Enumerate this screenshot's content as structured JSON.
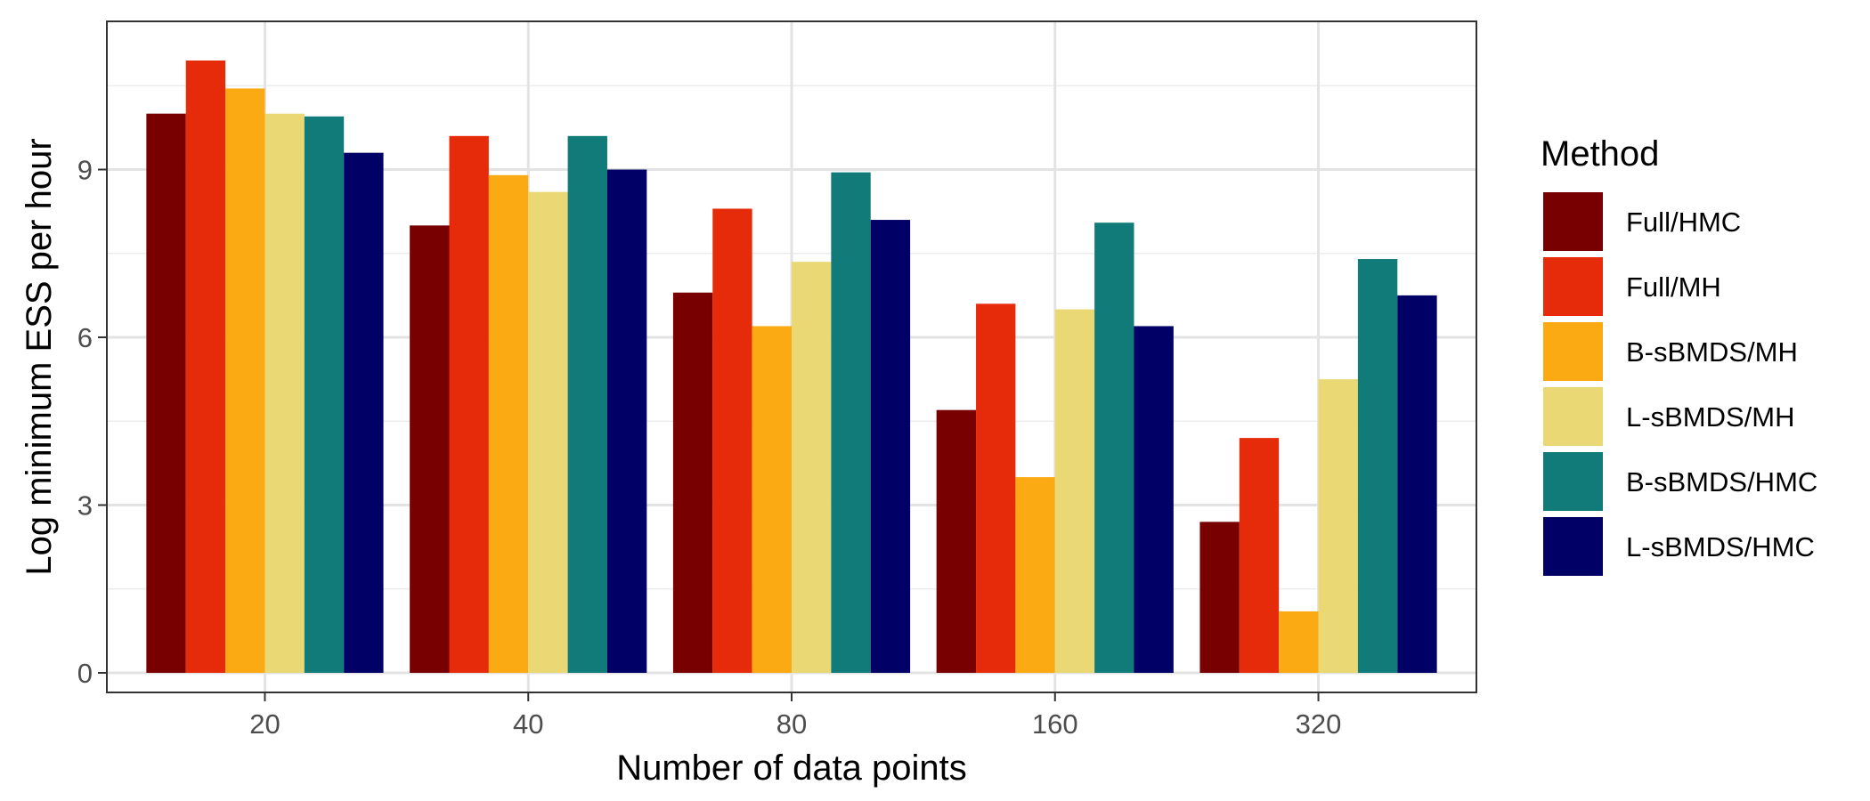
{
  "chart_data": {
    "type": "bar",
    "title": "",
    "xlabel": "Number of data points",
    "ylabel": "Log minimum ESS per hour",
    "categories": [
      "20",
      "40",
      "80",
      "160",
      "320"
    ],
    "ylim": [
      -0.35,
      11.65
    ],
    "yticks": [
      0,
      3,
      6,
      9
    ],
    "grid": true,
    "legend": {
      "title": "Method",
      "position": "right"
    },
    "series": [
      {
        "name": "Full/HMC",
        "color": "#780000",
        "values": [
          10.0,
          8.0,
          6.8,
          4.7,
          2.7
        ]
      },
      {
        "name": "Full/MH",
        "color": "#e52b09",
        "values": [
          10.95,
          9.6,
          8.3,
          6.6,
          4.2
        ]
      },
      {
        "name": "B-sBMDS/MH",
        "color": "#fbaa14",
        "values": [
          10.45,
          8.9,
          6.2,
          3.5,
          1.1
        ]
      },
      {
        "name": "L-sBMDS/MH",
        "color": "#e9d874",
        "values": [
          10.0,
          8.6,
          7.35,
          6.5,
          5.25
        ]
      },
      {
        "name": "B-sBMDS/HMC",
        "color": "#107b78",
        "values": [
          9.95,
          9.6,
          8.95,
          8.05,
          7.4
        ]
      },
      {
        "name": "L-sBMDS/HMC",
        "color": "#000066",
        "values": [
          9.3,
          9.0,
          8.1,
          6.2,
          6.75
        ]
      }
    ]
  }
}
